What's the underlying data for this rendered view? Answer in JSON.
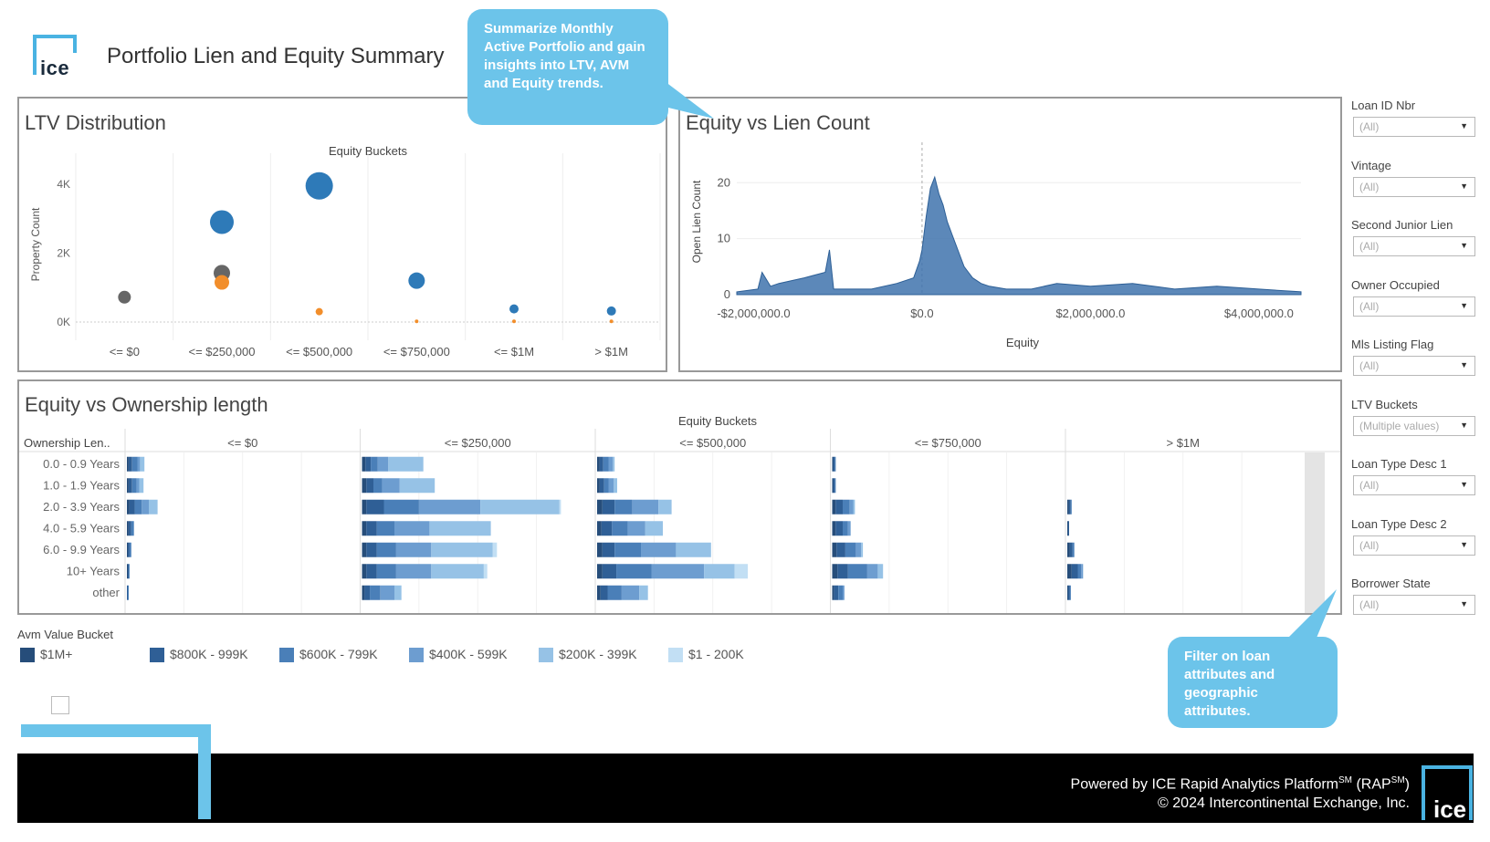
{
  "header": {
    "logo_text": "ice",
    "title": "Portfolio Lien and Equity Summary"
  },
  "callouts": {
    "top": "Summarize Monthly Active Portfolio and gain insights into LTV, AVM and Equity trends.",
    "bottom": "Filter on loan attributes and geographic attributes."
  },
  "panels": {
    "ltv_title": "LTV Distribution",
    "equity_lien_title": "Equity vs Lien Count",
    "ownership_title": "Equity vs Ownership length"
  },
  "filters": [
    {
      "label": "Loan ID Nbr",
      "value": "(All)"
    },
    {
      "label": "Vintage",
      "value": "(All)"
    },
    {
      "label": "Second Junior Lien",
      "value": "(All)"
    },
    {
      "label": "Owner Occupied",
      "value": "(All)"
    },
    {
      "label": "Mls Listing Flag",
      "value": "(All)"
    },
    {
      "label": "LTV Buckets",
      "value": "(Multiple values)"
    },
    {
      "label": "Loan Type Desc 1",
      "value": "(All)"
    },
    {
      "label": "Loan Type Desc 2",
      "value": "(All)"
    },
    {
      "label": "Borrower State",
      "value": "(All)"
    }
  ],
  "legend": {
    "title": "Avm Value Bucket",
    "items": [
      {
        "label": "$1M+",
        "color": "#264d7a"
      },
      {
        "label": "$800K - 999K",
        "color": "#2f5f96"
      },
      {
        "label": "$600K - 799K",
        "color": "#4a7fb8"
      },
      {
        "label": "$400K - 599K",
        "color": "#6d9dd0"
      },
      {
        "label": "$200K - 399K",
        "color": "#96c2e6"
      },
      {
        "label": "$1 - 200K",
        "color": "#c2dff4"
      }
    ]
  },
  "footer": {
    "line1_prefix": "Powered by ICE Rapid Analytics Platform",
    "line1_sm": "SM",
    "line1_mid": " (RAP",
    "line1_suffix": ")",
    "line2": "© 2024 Intercontinental Exchange, Inc.",
    "logo_text": "ice"
  },
  "chart_data": [
    {
      "type": "scatter",
      "title": "LTV Distribution",
      "subtitle": "Equity Buckets",
      "xlabel": "Equity Buckets",
      "ylabel": "Property Count",
      "categories": [
        "<= $0",
        "<= $250,000",
        "<= $500,000",
        "<= $750,000",
        "<= $1M",
        "> $1M"
      ],
      "yticks": [
        "0K",
        "2K",
        "4K"
      ],
      "ylim": [
        0,
        4500
      ],
      "series": [
        {
          "name": "blue",
          "color": "#2e7ab8",
          "points": [
            {
              "x": "<= $250,000",
              "y": 2900,
              "r": 13
            },
            {
              "x": "<= $500,000",
              "y": 3950,
              "r": 15
            },
            {
              "x": "<= $750,000",
              "y": 1200,
              "r": 9
            },
            {
              "x": "<= $1M",
              "y": 380,
              "r": 5
            },
            {
              "x": "> $1M",
              "y": 320,
              "r": 5
            }
          ]
        },
        {
          "name": "gray",
          "color": "#666666",
          "points": [
            {
              "x": "<= $0",
              "y": 720,
              "r": 7
            },
            {
              "x": "<= $250,000",
              "y": 1420,
              "r": 9
            }
          ]
        },
        {
          "name": "orange",
          "color": "#f28e2b",
          "points": [
            {
              "x": "<= $250,000",
              "y": 1150,
              "r": 8
            },
            {
              "x": "<= $500,000",
              "y": 300,
              "r": 4
            },
            {
              "x": "<= $750,000",
              "y": 20,
              "r": 2
            },
            {
              "x": "<= $1M",
              "y": 20,
              "r": 2
            },
            {
              "x": "> $1M",
              "y": 20,
              "r": 2
            }
          ]
        }
      ]
    },
    {
      "type": "area",
      "title": "Equity vs Lien Count",
      "xlabel": "Equity",
      "ylabel": "Open Lien Count",
      "xticks": [
        "-$2,000,000.0",
        "$0.0",
        "$2,000,000.0",
        "$4,000,000.0"
      ],
      "xlim": [
        -2200000,
        4500000
      ],
      "yticks": [
        "0",
        "10",
        "20"
      ],
      "ylim": [
        0,
        22
      ],
      "x": [
        -2200000,
        -1950000,
        -1900000,
        -1800000,
        -1700000,
        -1400000,
        -1150000,
        -1100000,
        -1050000,
        -900000,
        -600000,
        -300000,
        -100000,
        -30000,
        0,
        50000,
        100000,
        150000,
        200000,
        250000,
        300000,
        350000,
        400000,
        450000,
        500000,
        550000,
        600000,
        700000,
        800000,
        1000000,
        1300000,
        1600000,
        2000000,
        2500000,
        3000000,
        3500000,
        4000000,
        4500000
      ],
      "y": [
        0.5,
        1,
        4,
        1.5,
        2,
        3,
        4,
        8,
        1,
        1,
        1,
        2,
        3,
        6,
        8,
        14,
        19,
        21,
        18,
        16,
        13,
        11,
        9,
        7,
        5,
        4,
        3,
        2,
        1.5,
        1,
        1,
        2,
        1.5,
        2,
        1,
        1.5,
        1,
        0.5
      ]
    },
    {
      "type": "bar",
      "stacked": true,
      "title": "Equity vs Ownership length",
      "subtitle": "Equity Buckets",
      "row_header": "Ownership Len..",
      "columns": [
        "<= $0",
        "<= $250,000",
        "<= $500,000",
        "<= $750,000",
        "> $1M"
      ],
      "rows": [
        "0.0 - 0.9 Years",
        "1.0 - 1.9 Years",
        "2.0 - 3.9 Years",
        "4.0 - 5.9 Years",
        "6.0 - 9.9 Years",
        "10+ Years",
        "other"
      ],
      "segment_order": [
        "$1M+",
        "$800K - 999K",
        "$600K - 799K",
        "$400K - 599K",
        "$200K - 399K",
        "$1 - 200K"
      ],
      "scale_max": 250,
      "values": [
        [
          [
            2,
            4,
            6,
            3,
            5,
            0
          ],
          [
            4,
            6,
            8,
            12,
            40,
            0
          ],
          [
            3,
            4,
            6,
            5,
            2,
            0
          ],
          [
            1,
            2,
            1,
            0,
            0,
            0
          ],
          [
            0,
            0,
            0,
            0,
            0,
            0
          ]
        ],
        [
          [
            2,
            4,
            5,
            3,
            5,
            0
          ],
          [
            5,
            8,
            10,
            20,
            40,
            0
          ],
          [
            3,
            5,
            5,
            6,
            4,
            0
          ],
          [
            1,
            2,
            1,
            0,
            0,
            0
          ],
          [
            0,
            0,
            0,
            0,
            0,
            0
          ]
        ],
        [
          [
            3,
            6,
            8,
            8,
            10,
            0
          ],
          [
            5,
            20,
            40,
            70,
            90,
            2
          ],
          [
            6,
            14,
            20,
            30,
            15,
            0
          ],
          [
            4,
            8,
            8,
            4,
            2,
            0
          ],
          [
            2,
            2,
            1,
            0,
            0,
            0
          ]
        ],
        [
          [
            2,
            3,
            3,
            0,
            0,
            0
          ],
          [
            5,
            12,
            20,
            40,
            70,
            0
          ],
          [
            5,
            12,
            18,
            20,
            20,
            0
          ],
          [
            4,
            8,
            6,
            3,
            0,
            0
          ],
          [
            1,
            1,
            0,
            0,
            0,
            0
          ]
        ],
        [
          [
            1,
            2,
            2,
            0,
            0,
            0
          ],
          [
            5,
            12,
            22,
            40,
            70,
            5
          ],
          [
            6,
            14,
            30,
            40,
            40,
            0
          ],
          [
            5,
            10,
            12,
            6,
            2,
            0
          ],
          [
            3,
            3,
            2,
            0,
            0,
            0
          ]
        ],
        [
          [
            1,
            1,
            1,
            0,
            0,
            0
          ],
          [
            5,
            12,
            22,
            40,
            60,
            4
          ],
          [
            6,
            16,
            40,
            60,
            35,
            15
          ],
          [
            6,
            12,
            22,
            12,
            6,
            0
          ],
          [
            5,
            7,
            4,
            2,
            0,
            0
          ]
        ],
        [
          [
            0,
            1,
            1,
            0,
            0,
            0
          ],
          [
            3,
            6,
            12,
            16,
            8,
            0
          ],
          [
            4,
            8,
            16,
            20,
            10,
            0
          ],
          [
            2,
            5,
            5,
            2,
            0,
            0
          ],
          [
            1,
            2,
            1,
            0,
            0,
            0
          ]
        ]
      ]
    }
  ]
}
